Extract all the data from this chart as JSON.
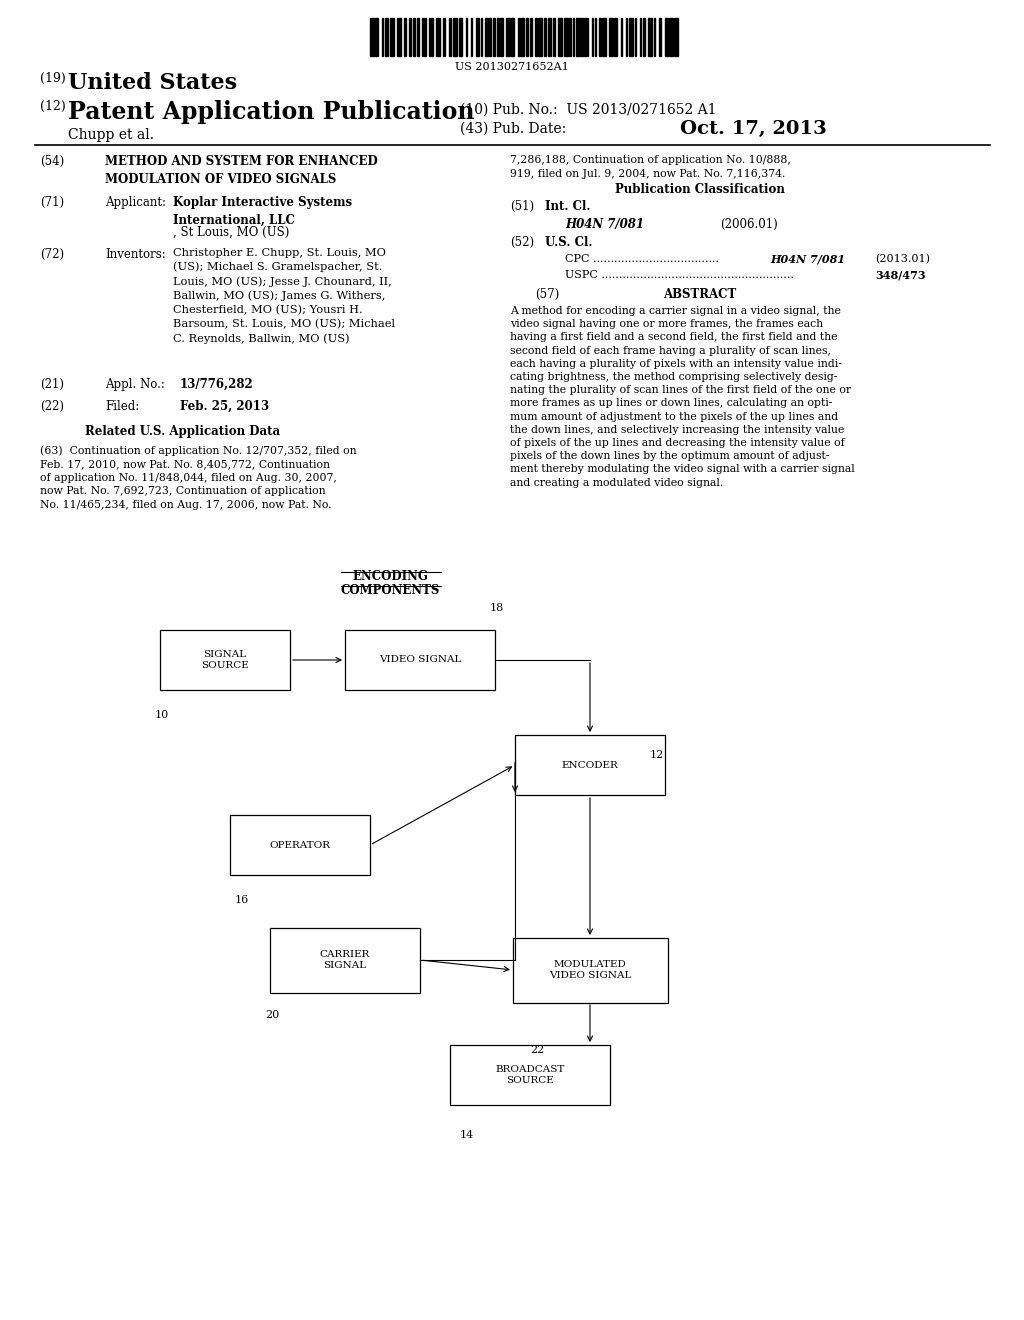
{
  "bg_color": "#ffffff",
  "barcode_text": "US 20130271652A1",
  "header_19": "(19) United States",
  "header_12": "(12) Patent Application Publication",
  "pub_no_label": "(10) Pub. No.:",
  "pub_no_value": "US 2013/0271652 A1",
  "pub_date_label": "(43) Pub. Date:",
  "pub_date_value": "Oct. 17, 2013",
  "author": "Chupp et al.",
  "related_text2": "7,286,188, Continuation of application No. 10/888,\n919, filed on Jul. 9, 2004, now Pat. No. 7,116,374.",
  "pub_class_title": "Publication Classification",
  "abstract_text": "A method for encoding a carrier signal in a video signal, the\nvideo signal having one or more frames, the frames each\nhaving a first field and a second field, the first field and the\nsecond field of each frame having a plurality of scan lines,\neach having a plurality of pixels with an intensity value indi-\ncating brightness, the method comprising selectively desig-\nnating the plurality of scan lines of the first field of the one or\nmore frames as up lines or down lines, calculating an opti-\nmum amount of adjustment to the pixels of the up lines and\nthe down lines, and selectively increasing the intensity value\nof pixels of the up lines and decreasing the intensity value of\npixels of the down lines by the optimum amount of adjust-\nment thereby modulating the video signal with a carrier signal\nand creating a modulated video signal.",
  "diagram_title_line1": "ENCODING",
  "diagram_title_line2": "COMPONENTS"
}
